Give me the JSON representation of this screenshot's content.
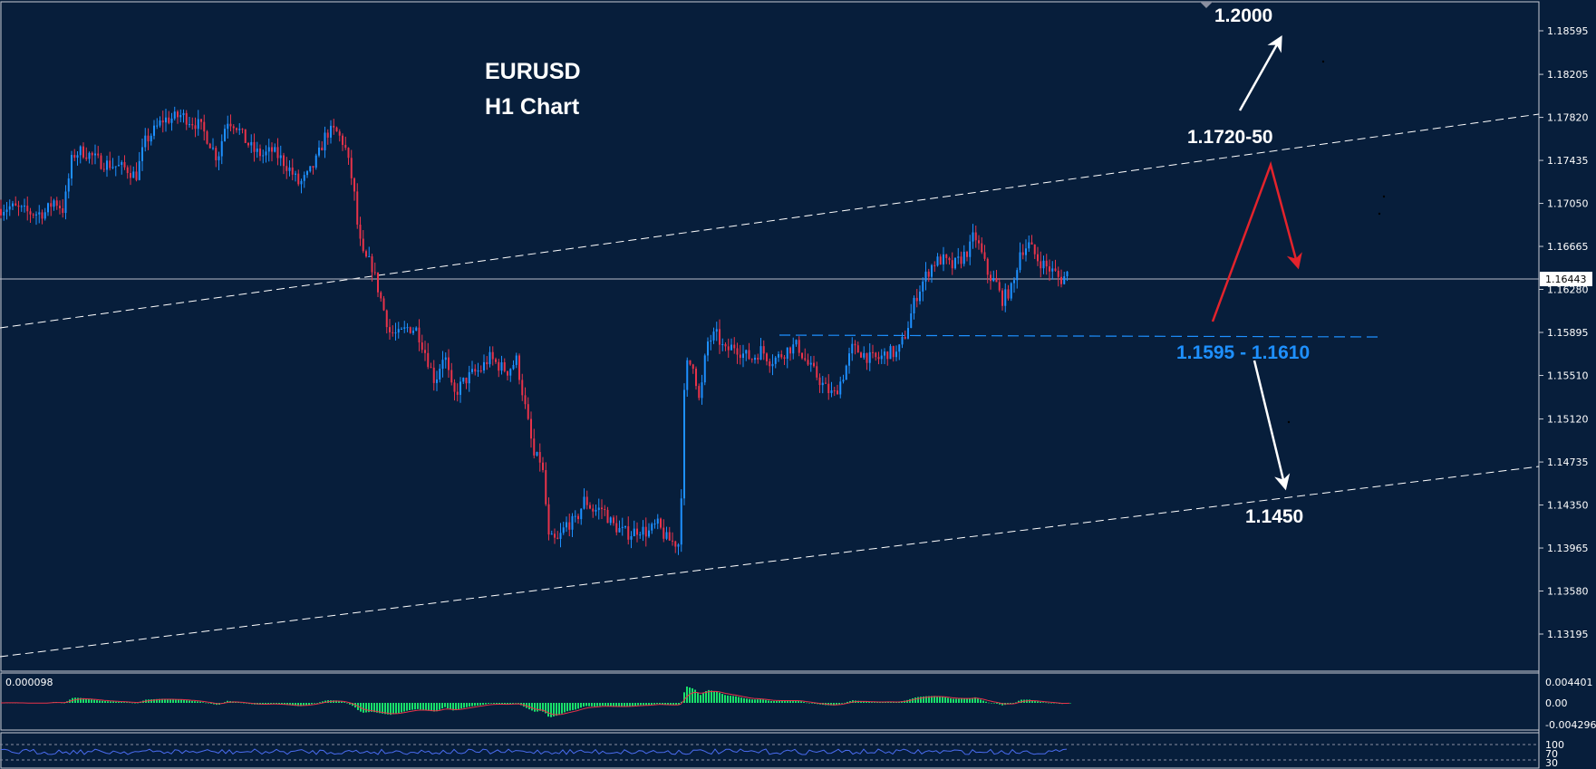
{
  "chart_data": {
    "type": "candlestick",
    "symbol": "EURUSD",
    "timeframe": "H1 Chart",
    "price_axis": {
      "ticks": [
        "1.18595",
        "1.18205",
        "1.17820",
        "1.17435",
        "1.17050",
        "1.16665",
        "1.16280",
        "1.15895",
        "1.15510",
        "1.15120",
        "1.14735",
        "1.14350",
        "1.13965",
        "1.13580",
        "1.13195"
      ],
      "ylim": [
        1.1305,
        1.1887
      ],
      "current_price": "1.16443"
    },
    "annotations": [
      {
        "label": "1.2000",
        "color": "#ffffff"
      },
      {
        "label": "1.1720-50",
        "color": "#ffffff"
      },
      {
        "label": "1.1595 - 1.1610",
        "color": "#1e90ff"
      },
      {
        "label": "1.1450",
        "color": "#ffffff"
      }
    ],
    "colors": {
      "bull": "#1e90ff",
      "bear": "#e8334a",
      "channel": "#ffffff",
      "zone": "#1e90ff",
      "arrow_up": "#ffffff",
      "arrow_down": "#e3232c",
      "macd_hist": "#19e06a",
      "macd_signal": "#e8334a",
      "rsi": "#4a6cf0"
    },
    "close_path": [
      [
        0,
        1.17
      ],
      [
        10,
        1.1702
      ],
      [
        20,
        1.17
      ],
      [
        30,
        1.1697
      ],
      [
        40,
        1.1696
      ],
      [
        50,
        1.1697
      ],
      [
        60,
        1.1708
      ],
      [
        70,
        1.1699
      ],
      [
        80,
        1.1748
      ],
      [
        90,
        1.1752
      ],
      [
        100,
        1.1748
      ],
      [
        110,
        1.1742
      ],
      [
        120,
        1.174
      ],
      [
        130,
        1.1738
      ],
      [
        140,
        1.1736
      ],
      [
        150,
        1.1729
      ],
      [
        160,
        1.176
      ],
      [
        170,
        1.177
      ],
      [
        180,
        1.178
      ],
      [
        190,
        1.1781
      ],
      [
        200,
        1.1784
      ],
      [
        210,
        1.1779
      ],
      [
        220,
        1.1775
      ],
      [
        230,
        1.1762
      ],
      [
        240,
        1.1745
      ],
      [
        250,
        1.178
      ],
      [
        260,
        1.1776
      ],
      [
        270,
        1.1762
      ],
      [
        280,
        1.1752
      ],
      [
        290,
        1.1748
      ],
      [
        300,
        1.1752
      ],
      [
        310,
        1.1745
      ],
      [
        320,
        1.1735
      ],
      [
        330,
        1.1722
      ],
      [
        340,
        1.173
      ],
      [
        350,
        1.1745
      ],
      [
        360,
        1.1768
      ],
      [
        370,
        1.177
      ],
      [
        380,
        1.1758
      ],
      [
        390,
        1.172
      ],
      [
        395,
        1.168
      ],
      [
        400,
        1.1658
      ],
      [
        410,
        1.165
      ],
      [
        420,
        1.162
      ],
      [
        430,
        1.159
      ],
      [
        440,
        1.1587
      ],
      [
        450,
        1.1594
      ],
      [
        460,
        1.1592
      ],
      [
        470,
        1.157
      ],
      [
        480,
        1.1545
      ],
      [
        490,
        1.1572
      ],
      [
        500,
        1.1532
      ],
      [
        510,
        1.1544
      ],
      [
        520,
        1.1552
      ],
      [
        530,
        1.1556
      ],
      [
        540,
        1.1567
      ],
      [
        550,
        1.156
      ],
      [
        560,
        1.1555
      ],
      [
        570,
        1.1565
      ],
      [
        580,
        1.152
      ],
      [
        590,
        1.1475
      ],
      [
        595,
        1.1478
      ],
      [
        600,
        1.146
      ],
      [
        605,
        1.1405
      ],
      [
        615,
        1.1402
      ],
      [
        625,
        1.1418
      ],
      [
        635,
        1.142
      ],
      [
        645,
        1.144
      ],
      [
        655,
        1.143
      ],
      [
        665,
        1.1432
      ],
      [
        675,
        1.1418
      ],
      [
        685,
        1.1412
      ],
      [
        695,
        1.1409
      ],
      [
        705,
        1.1414
      ],
      [
        715,
        1.141
      ],
      [
        725,
        1.1418
      ],
      [
        735,
        1.1405
      ],
      [
        742,
        1.1402
      ],
      [
        750,
        1.14
      ],
      [
        756,
        1.156
      ],
      [
        765,
        1.1562
      ],
      [
        772,
        1.1525
      ],
      [
        780,
        1.158
      ],
      [
        790,
        1.1588
      ],
      [
        800,
        1.1572
      ],
      [
        810,
        1.1578
      ],
      [
        820,
        1.157
      ],
      [
        830,
        1.1566
      ],
      [
        840,
        1.1574
      ],
      [
        850,
        1.1564
      ],
      [
        860,
        1.1568
      ],
      [
        870,
        1.1575
      ],
      [
        880,
        1.1578
      ],
      [
        890,
        1.1562
      ],
      [
        900,
        1.1552
      ],
      [
        910,
        1.154
      ],
      [
        920,
        1.1533
      ],
      [
        930,
        1.155
      ],
      [
        940,
        1.1575
      ],
      [
        950,
        1.1572
      ],
      [
        960,
        1.1566
      ],
      [
        970,
        1.1566
      ],
      [
        980,
        1.1572
      ],
      [
        990,
        1.157
      ],
      [
        1000,
        1.159
      ],
      [
        1010,
        1.162
      ],
      [
        1020,
        1.1638
      ],
      [
        1030,
        1.1652
      ],
      [
        1040,
        1.1655
      ],
      [
        1050,
        1.1648
      ],
      [
        1060,
        1.1655
      ],
      [
        1070,
        1.1665
      ],
      [
        1075,
        1.1678
      ],
      [
        1082,
        1.1662
      ],
      [
        1090,
        1.1642
      ],
      [
        1100,
        1.1632
      ],
      [
        1105,
        1.1618
      ],
      [
        1112,
        1.1625
      ],
      [
        1118,
        1.163
      ],
      [
        1125,
        1.1662
      ],
      [
        1135,
        1.1668
      ],
      [
        1145,
        1.1655
      ],
      [
        1155,
        1.1648
      ],
      [
        1165,
        1.1642
      ],
      [
        1170,
        1.1636
      ],
      [
        1180,
        1.1644
      ]
    ]
  },
  "indicators": {
    "macd": {
      "label": "0.000098",
      "ticks": [
        "0.004401",
        "0.00",
        "-0.004296"
      ]
    },
    "rsi": {
      "ticks": [
        "100",
        "70",
        "30"
      ]
    }
  }
}
